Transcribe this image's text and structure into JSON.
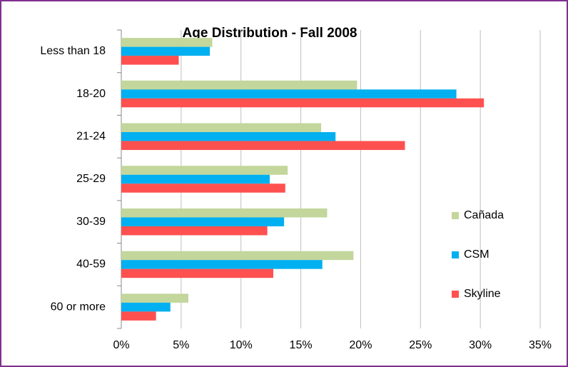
{
  "chart_data": {
    "type": "hbar",
    "title": "Age Distribution - Fall 2008",
    "categories": [
      "Less than 18",
      "18-20",
      "21-24",
      "25-29",
      "30-39",
      "40-59",
      "60 or more"
    ],
    "series": [
      {
        "name": "Cañada",
        "color": "#c3d69b",
        "values": [
          7.6,
          19.7,
          16.7,
          13.9,
          17.2,
          19.4,
          5.6
        ]
      },
      {
        "name": "CSM",
        "color": "#00b0f0",
        "values": [
          7.4,
          28.0,
          17.9,
          12.4,
          13.6,
          16.8,
          4.1
        ]
      },
      {
        "name": "Skyline",
        "color": "#ff5050",
        "values": [
          4.8,
          30.3,
          23.7,
          13.7,
          12.2,
          12.7,
          2.9
        ]
      }
    ],
    "xlim": [
      0,
      35
    ],
    "xticks": [
      {
        "value": 0,
        "label": "0%"
      },
      {
        "value": 5,
        "label": "5%"
      },
      {
        "value": 10,
        "label": "10%"
      },
      {
        "value": 15,
        "label": "15%"
      },
      {
        "value": 20,
        "label": "20%"
      },
      {
        "value": 25,
        "label": "25%"
      },
      {
        "value": 30,
        "label": "30%"
      },
      {
        "value": 35,
        "label": "35%"
      }
    ],
    "grid": true,
    "legend": "right"
  }
}
